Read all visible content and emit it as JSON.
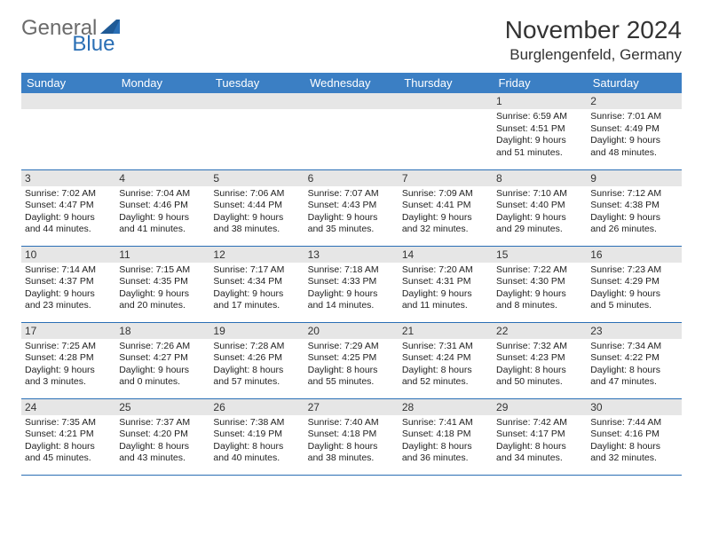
{
  "logo": {
    "general": "General",
    "blue": "Blue"
  },
  "title": "November 2024",
  "location": "Burglengenfeld, Germany",
  "colors": {
    "header_bg": "#3b7fc4",
    "header_text": "#ffffff",
    "border": "#2a6fb5",
    "daynum_bg": "#e6e6e6",
    "logo_gray": "#6b6b6b",
    "logo_blue": "#2a6fb5"
  },
  "weekdays": [
    "Sunday",
    "Monday",
    "Tuesday",
    "Wednesday",
    "Thursday",
    "Friday",
    "Saturday"
  ],
  "weeks": [
    [
      null,
      null,
      null,
      null,
      null,
      {
        "d": "1",
        "sr": "6:59 AM",
        "ss": "4:51 PM",
        "dl": "9 hours and 51 minutes."
      },
      {
        "d": "2",
        "sr": "7:01 AM",
        "ss": "4:49 PM",
        "dl": "9 hours and 48 minutes."
      }
    ],
    [
      {
        "d": "3",
        "sr": "7:02 AM",
        "ss": "4:47 PM",
        "dl": "9 hours and 44 minutes."
      },
      {
        "d": "4",
        "sr": "7:04 AM",
        "ss": "4:46 PM",
        "dl": "9 hours and 41 minutes."
      },
      {
        "d": "5",
        "sr": "7:06 AM",
        "ss": "4:44 PM",
        "dl": "9 hours and 38 minutes."
      },
      {
        "d": "6",
        "sr": "7:07 AM",
        "ss": "4:43 PM",
        "dl": "9 hours and 35 minutes."
      },
      {
        "d": "7",
        "sr": "7:09 AM",
        "ss": "4:41 PM",
        "dl": "9 hours and 32 minutes."
      },
      {
        "d": "8",
        "sr": "7:10 AM",
        "ss": "4:40 PM",
        "dl": "9 hours and 29 minutes."
      },
      {
        "d": "9",
        "sr": "7:12 AM",
        "ss": "4:38 PM",
        "dl": "9 hours and 26 minutes."
      }
    ],
    [
      {
        "d": "10",
        "sr": "7:14 AM",
        "ss": "4:37 PM",
        "dl": "9 hours and 23 minutes."
      },
      {
        "d": "11",
        "sr": "7:15 AM",
        "ss": "4:35 PM",
        "dl": "9 hours and 20 minutes."
      },
      {
        "d": "12",
        "sr": "7:17 AM",
        "ss": "4:34 PM",
        "dl": "9 hours and 17 minutes."
      },
      {
        "d": "13",
        "sr": "7:18 AM",
        "ss": "4:33 PM",
        "dl": "9 hours and 14 minutes."
      },
      {
        "d": "14",
        "sr": "7:20 AM",
        "ss": "4:31 PM",
        "dl": "9 hours and 11 minutes."
      },
      {
        "d": "15",
        "sr": "7:22 AM",
        "ss": "4:30 PM",
        "dl": "9 hours and 8 minutes."
      },
      {
        "d": "16",
        "sr": "7:23 AM",
        "ss": "4:29 PM",
        "dl": "9 hours and 5 minutes."
      }
    ],
    [
      {
        "d": "17",
        "sr": "7:25 AM",
        "ss": "4:28 PM",
        "dl": "9 hours and 3 minutes."
      },
      {
        "d": "18",
        "sr": "7:26 AM",
        "ss": "4:27 PM",
        "dl": "9 hours and 0 minutes."
      },
      {
        "d": "19",
        "sr": "7:28 AM",
        "ss": "4:26 PM",
        "dl": "8 hours and 57 minutes."
      },
      {
        "d": "20",
        "sr": "7:29 AM",
        "ss": "4:25 PM",
        "dl": "8 hours and 55 minutes."
      },
      {
        "d": "21",
        "sr": "7:31 AM",
        "ss": "4:24 PM",
        "dl": "8 hours and 52 minutes."
      },
      {
        "d": "22",
        "sr": "7:32 AM",
        "ss": "4:23 PM",
        "dl": "8 hours and 50 minutes."
      },
      {
        "d": "23",
        "sr": "7:34 AM",
        "ss": "4:22 PM",
        "dl": "8 hours and 47 minutes."
      }
    ],
    [
      {
        "d": "24",
        "sr": "7:35 AM",
        "ss": "4:21 PM",
        "dl": "8 hours and 45 minutes."
      },
      {
        "d": "25",
        "sr": "7:37 AM",
        "ss": "4:20 PM",
        "dl": "8 hours and 43 minutes."
      },
      {
        "d": "26",
        "sr": "7:38 AM",
        "ss": "4:19 PM",
        "dl": "8 hours and 40 minutes."
      },
      {
        "d": "27",
        "sr": "7:40 AM",
        "ss": "4:18 PM",
        "dl": "8 hours and 38 minutes."
      },
      {
        "d": "28",
        "sr": "7:41 AM",
        "ss": "4:18 PM",
        "dl": "8 hours and 36 minutes."
      },
      {
        "d": "29",
        "sr": "7:42 AM",
        "ss": "4:17 PM",
        "dl": "8 hours and 34 minutes."
      },
      {
        "d": "30",
        "sr": "7:44 AM",
        "ss": "4:16 PM",
        "dl": "8 hours and 32 minutes."
      }
    ]
  ],
  "labels": {
    "sunrise": "Sunrise: ",
    "sunset": "Sunset: ",
    "daylight": "Daylight: "
  }
}
